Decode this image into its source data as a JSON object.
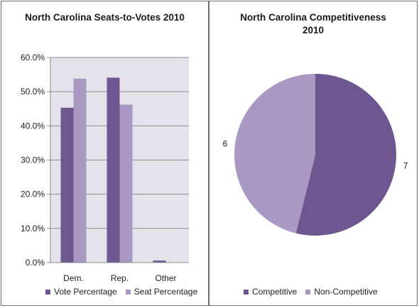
{
  "colors": {
    "dark": "#6e5690",
    "light": "#a898c2",
    "plot_bg": "#e4e2eb"
  },
  "chart_data": [
    {
      "type": "bar",
      "title": "North Carolina Seats-to-Votes 2010",
      "categories": [
        "Dem.",
        "Rep.",
        "Other"
      ],
      "series": [
        {
          "name": "Vote Percentage",
          "values": [
            45.3,
            54.1,
            0.6
          ]
        },
        {
          "name": "Seat Percentage",
          "values": [
            53.8,
            46.2,
            0.0
          ]
        }
      ],
      "ylim": [
        0,
        60
      ],
      "yticks": [
        "0.0%",
        "10.0%",
        "20.0%",
        "30.0%",
        "40.0%",
        "50.0%",
        "60.0%"
      ],
      "grid": true,
      "legend": "bottom"
    },
    {
      "type": "pie",
      "title_lines": [
        "North Carolina Competitiveness",
        "2010"
      ],
      "labels": [
        "Competitive",
        "Non-Competitive"
      ],
      "values": [
        7,
        6
      ],
      "data_labels": [
        "7",
        "6"
      ],
      "legend": "bottom"
    }
  ]
}
